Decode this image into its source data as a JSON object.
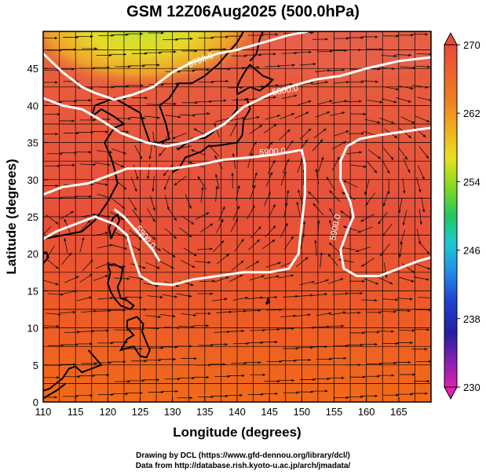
{
  "title": "GSM 12Z06Aug2025 (500.0hPa)",
  "credits": {
    "line1": "Drawing by DCL (https://www.gfd-dennou.org/library/dcl/)",
    "line2": "Data from http://database.rish.kyoto-u.ac.jp/arch/jmadata/"
  },
  "map": {
    "xlabel": "Longitude (degrees)",
    "ylabel": "Latitude  (degrees)",
    "lon_range": [
      110,
      170
    ],
    "lat_range": [
      0,
      50
    ],
    "lon_ticks": [
      "110",
      "115",
      "120",
      "125",
      "130",
      "135",
      "140",
      "145",
      "150",
      "155",
      "160",
      "165"
    ],
    "lat_ticks": [
      "0",
      "5",
      "10",
      "15",
      "20",
      "25",
      "30",
      "35",
      "40",
      "45"
    ],
    "grid": true,
    "contours": [
      {
        "label": "5700.0",
        "level": 5700
      },
      {
        "label": "5800.0",
        "level": 5800
      },
      {
        "label": "5900.0",
        "level": 5900
      },
      {
        "label": "5900.0",
        "level": 5900
      },
      {
        "label": "5900.0",
        "level": 5900
      }
    ],
    "colors": {
      "cold": "#c0e830",
      "mid": "#e86848",
      "warm": "#e84a3a",
      "south": "#f06a1e"
    }
  },
  "colorbar": {
    "range": [
      230,
      270
    ],
    "ticks": [
      "270",
      "262",
      "254",
      "246",
      "238",
      "230"
    ]
  }
}
